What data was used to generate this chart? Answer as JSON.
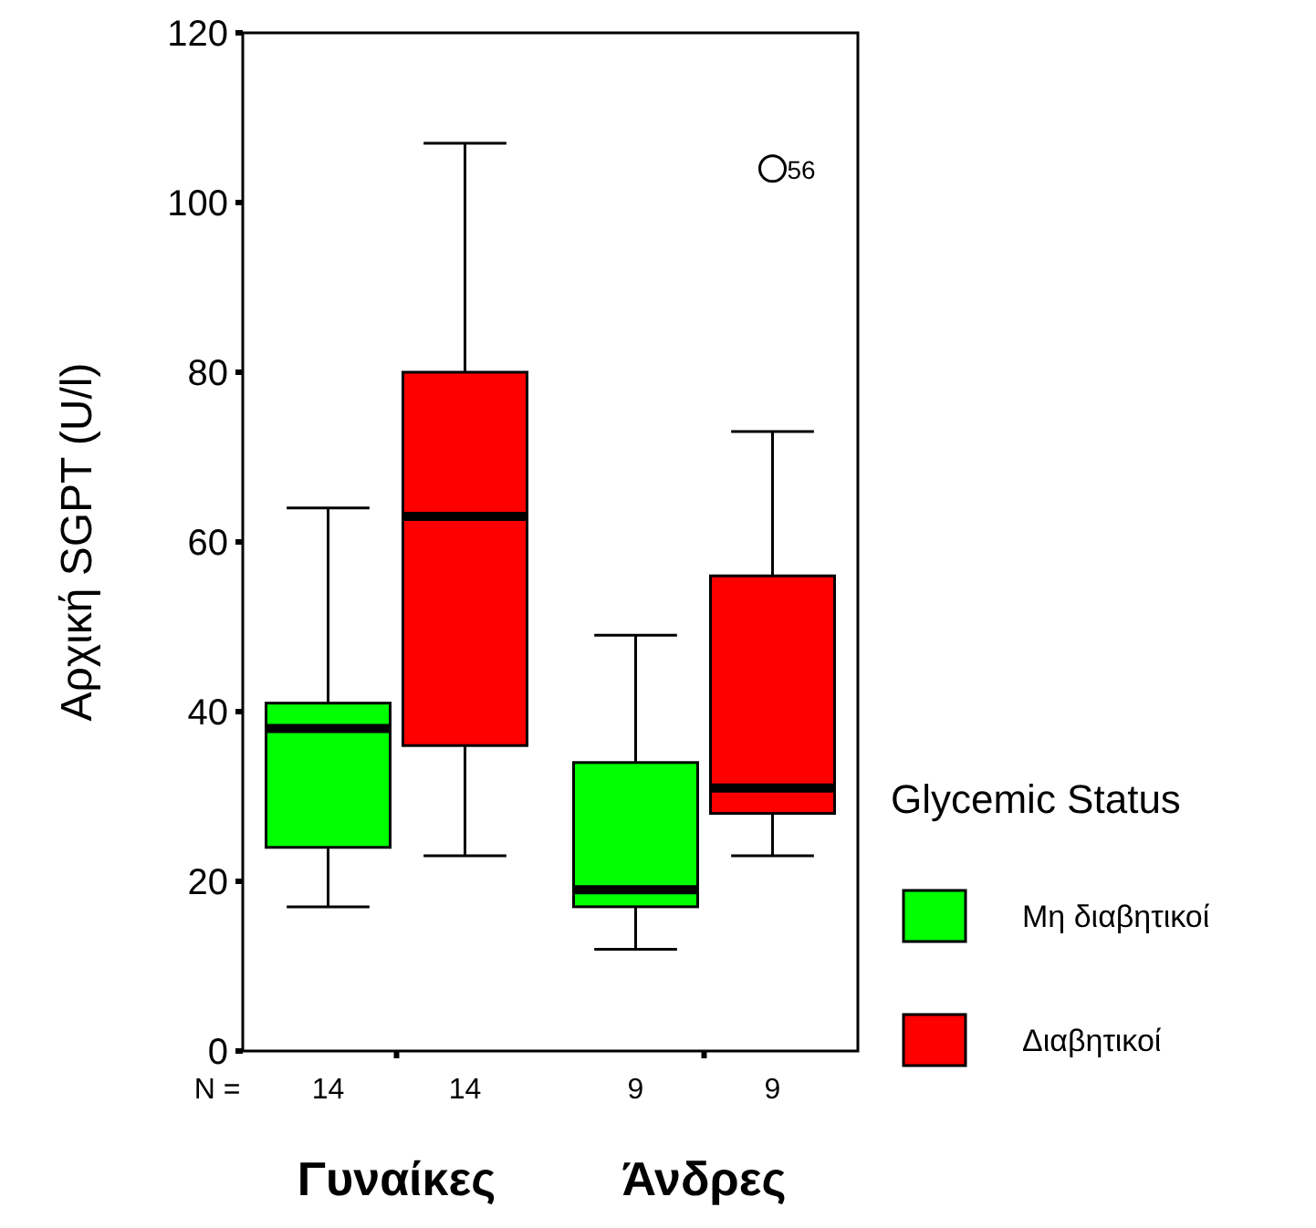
{
  "chart_data": {
    "type": "box",
    "ylabel": "Αρχική SGPT (U/l)",
    "legend_title": "Glycemic Status",
    "categories": [
      "Γυναίκες",
      "Άνδρες"
    ],
    "ylim": [
      0,
      120
    ],
    "yticks": [
      0,
      20,
      40,
      60,
      80,
      100,
      120
    ],
    "legend": "right",
    "grid": false,
    "series": [
      {
        "name": "Μη διαβητικοί",
        "color": "#00ff00",
        "boxes": [
          {
            "low": 17,
            "q1": 24,
            "median": 38,
            "q3": 41,
            "high": 64
          },
          {
            "low": 12,
            "q1": 17,
            "median": 19,
            "q3": 34,
            "high": 49
          }
        ]
      },
      {
        "name": "Διαβητικοί",
        "color": "#ff0000",
        "boxes": [
          {
            "low": 23,
            "q1": 36,
            "median": 63,
            "q3": 80,
            "high": 107
          },
          {
            "low": 23,
            "q1": 28,
            "median": 31,
            "q3": 56,
            "high": 73,
            "outliers": [
              104
            ]
          }
        ]
      }
    ],
    "annotations": [
      "N =",
      "14",
      "14",
      "9",
      "9",
      "56"
    ]
  }
}
